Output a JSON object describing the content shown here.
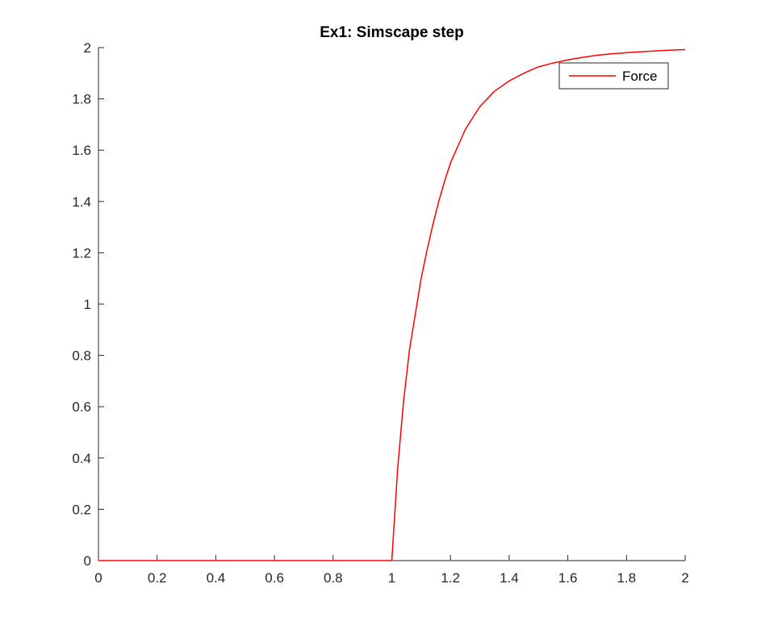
{
  "chart_data": {
    "type": "line",
    "title": "Ex1: Simscape step",
    "xlabel": "",
    "ylabel": "",
    "xlim": [
      0,
      2
    ],
    "ylim": [
      0,
      2
    ],
    "xticks": [
      "0",
      "0.2",
      "0.4",
      "0.6",
      "0.8",
      "1",
      "1.2",
      "1.4",
      "1.6",
      "1.8",
      "2"
    ],
    "yticks": [
      "0",
      "0.2",
      "0.4",
      "0.6",
      "0.8",
      "1",
      "1.2",
      "1.4",
      "1.6",
      "1.8",
      "2"
    ],
    "grid": false,
    "legend_position": "top-right",
    "series": [
      {
        "name": "Force",
        "color": "#ff0000",
        "x": [
          0,
          0.2,
          0.4,
          0.6,
          0.8,
          1.0,
          1.02,
          1.04,
          1.06,
          1.08,
          1.1,
          1.12,
          1.14,
          1.16,
          1.18,
          1.2,
          1.25,
          1.3,
          1.35,
          1.4,
          1.45,
          1.5,
          1.55,
          1.6,
          1.65,
          1.7,
          1.75,
          1.8,
          1.85,
          1.9,
          1.95,
          2.0
        ],
        "y": [
          0,
          0,
          0,
          0,
          0,
          0,
          0.36,
          0.62,
          0.82,
          0.96,
          1.1,
          1.21,
          1.31,
          1.4,
          1.48,
          1.55,
          1.68,
          1.77,
          1.83,
          1.87,
          1.9,
          1.925,
          1.94,
          1.952,
          1.962,
          1.97,
          1.976,
          1.98,
          1.984,
          1.987,
          1.99,
          1.992
        ]
      }
    ]
  }
}
